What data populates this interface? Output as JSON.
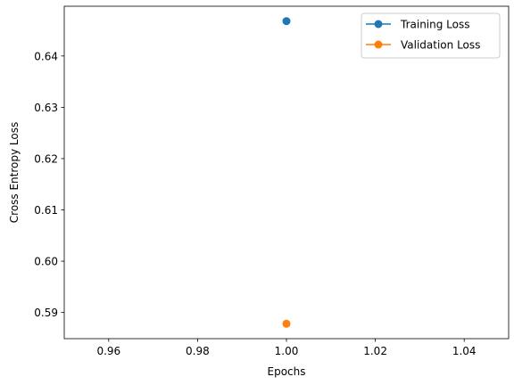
{
  "chart_data": {
    "type": "line",
    "xlabel": "Epochs",
    "ylabel": "Cross Entropy Loss",
    "xlim": [
      0.95,
      1.05
    ],
    "ylim": [
      0.5849,
      0.6497
    ],
    "xticks": [
      0.96,
      0.98,
      1.0,
      1.02,
      1.04
    ],
    "xtick_labels": [
      "0.96",
      "0.98",
      "1.00",
      "1.02",
      "1.04"
    ],
    "yticks": [
      0.59,
      0.6,
      0.61,
      0.62,
      0.63,
      0.64
    ],
    "ytick_labels": [
      "0.59",
      "0.60",
      "0.61",
      "0.62",
      "0.63",
      "0.64"
    ],
    "grid": false,
    "legend_position": "top-right",
    "series": [
      {
        "name": "Training Loss",
        "color": "#1f77b4",
        "marker": "circle",
        "x": [
          1
        ],
        "y": [
          0.6468
        ]
      },
      {
        "name": "Validation Loss",
        "color": "#ff7f0e",
        "marker": "circle",
        "x": [
          1
        ],
        "y": [
          0.5878
        ]
      }
    ]
  }
}
